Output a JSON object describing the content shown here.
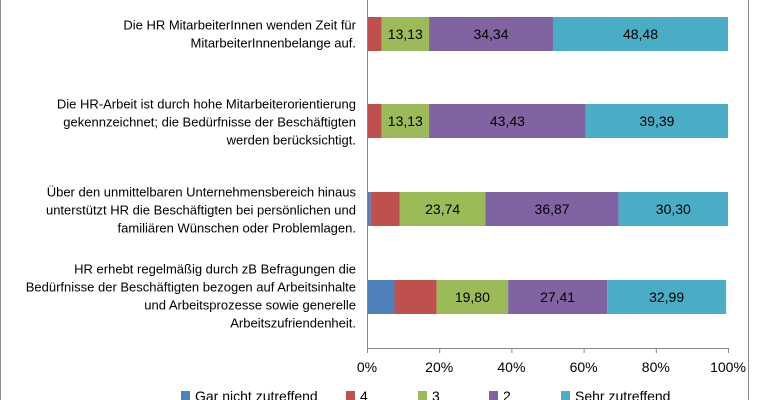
{
  "chart_data": {
    "type": "bar",
    "orientation": "horizontal",
    "stacked": "percent",
    "categories": [
      [
        "Die HR MitarbeiterInnen wenden Zeit für",
        "MitarbeiterInnenbelange auf."
      ],
      [
        "Die HR-Arbeit ist durch hohe Mitarbeiterorientierung",
        "gekennzeichnet; die Bedürfnisse der Beschäftigten",
        "werden berücksichtigt."
      ],
      [
        "Über den unmittelbaren Unternehmensbereich hinaus",
        "unterstützt HR die Beschäftigten bei persönlichen und",
        "familiären Wünschen oder Problemlagen."
      ],
      [
        "HR erhebt regelmäßig durch zB Befragungen die",
        "Bedürfnisse der Beschäftigten bezogen auf Arbeitsinhalte",
        "und Arbeitsprozesse sowie generelle",
        "Arbeitszufriendenheit."
      ]
    ],
    "series": [
      {
        "name": "Gar nicht zutreffend",
        "color": "#4f81bd",
        "values": [
          0,
          0,
          1.01,
          7.61
        ],
        "labels": [
          "",
          "",
          "",
          ""
        ]
      },
      {
        "name": "4",
        "color": "#c0504d",
        "values": [
          4.05,
          4.05,
          8.08,
          11.68
        ],
        "labels": [
          "",
          "",
          "",
          ""
        ]
      },
      {
        "name": "3",
        "color": "#9bbb59",
        "values": [
          13.13,
          13.13,
          23.74,
          19.8
        ],
        "labels": [
          "13,13",
          "13,13",
          "23,74",
          "19,80"
        ]
      },
      {
        "name": "2",
        "color": "#8064a2",
        "values": [
          34.34,
          43.43,
          36.87,
          27.41
        ],
        "labels": [
          "34,34",
          "43,43",
          "36,87",
          "27,41"
        ]
      },
      {
        "name": "Sehr zutreffend",
        "color": "#4bacc6",
        "values": [
          48.48,
          39.39,
          30.3,
          32.99
        ],
        "labels": [
          "48,48",
          "39,39",
          "30,30",
          "32,99"
        ]
      }
    ],
    "xlim": [
      0,
      100
    ],
    "xticks": [
      "0%",
      "20%",
      "40%",
      "60%",
      "80%",
      "100%"
    ],
    "grid": false,
    "legend_position": "bottom"
  }
}
